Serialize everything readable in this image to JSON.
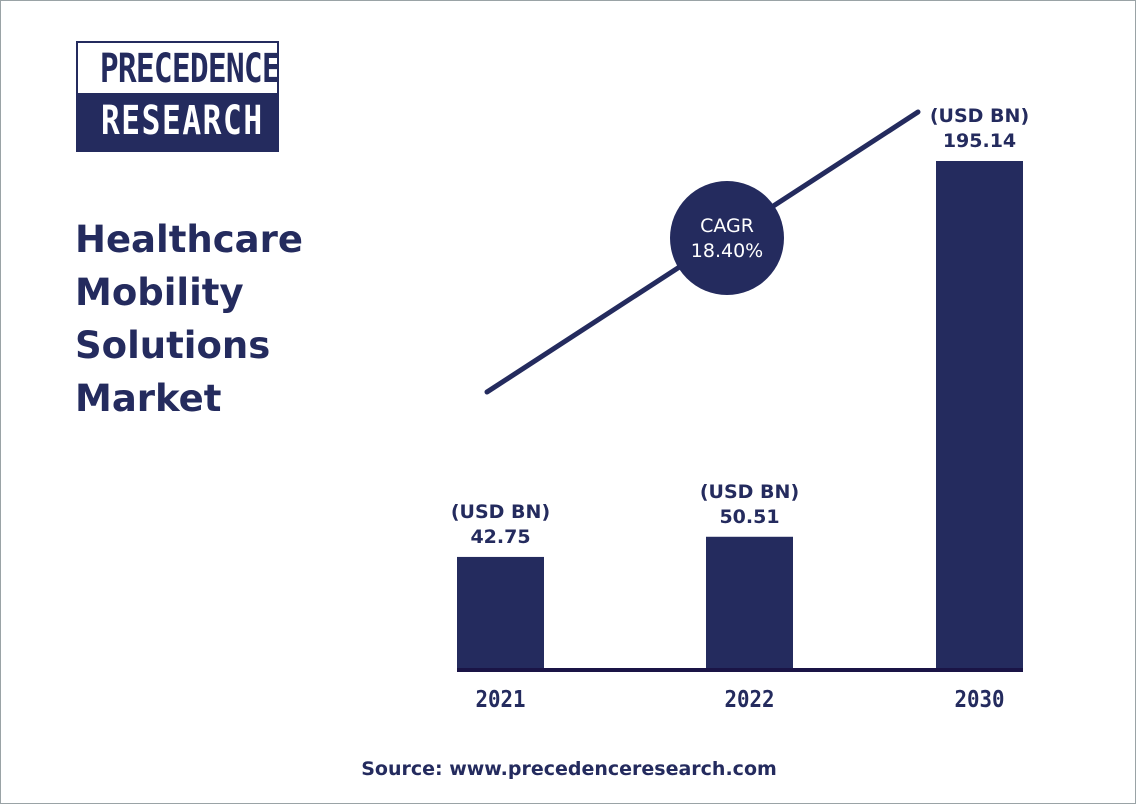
{
  "logo": {
    "line1": "PRECEDENCE",
    "line2": "RESEARCH"
  },
  "title_lines": [
    "Healthcare",
    "Mobility",
    "Solutions",
    "Market"
  ],
  "source": "Source: www.precedenceresearch.com",
  "colors": {
    "bar": "#242b5e",
    "text": "#242b5e",
    "background": "#ffffff"
  },
  "chart_data": {
    "type": "bar",
    "title": "Healthcare Mobility Solutions Market",
    "categories": [
      "2021",
      "2022",
      "2030"
    ],
    "values": [
      42.75,
      50.51,
      195.14
    ],
    "value_unit_label": "(USD BN)",
    "data_labels": [
      "42.75",
      "50.51",
      "195.14"
    ],
    "annotation": {
      "type": "trend-line",
      "badge_lines": [
        "CAGR",
        "18.40%"
      ]
    },
    "ylim": [
      0,
      195.14
    ],
    "grid": false,
    "legend": "none"
  }
}
